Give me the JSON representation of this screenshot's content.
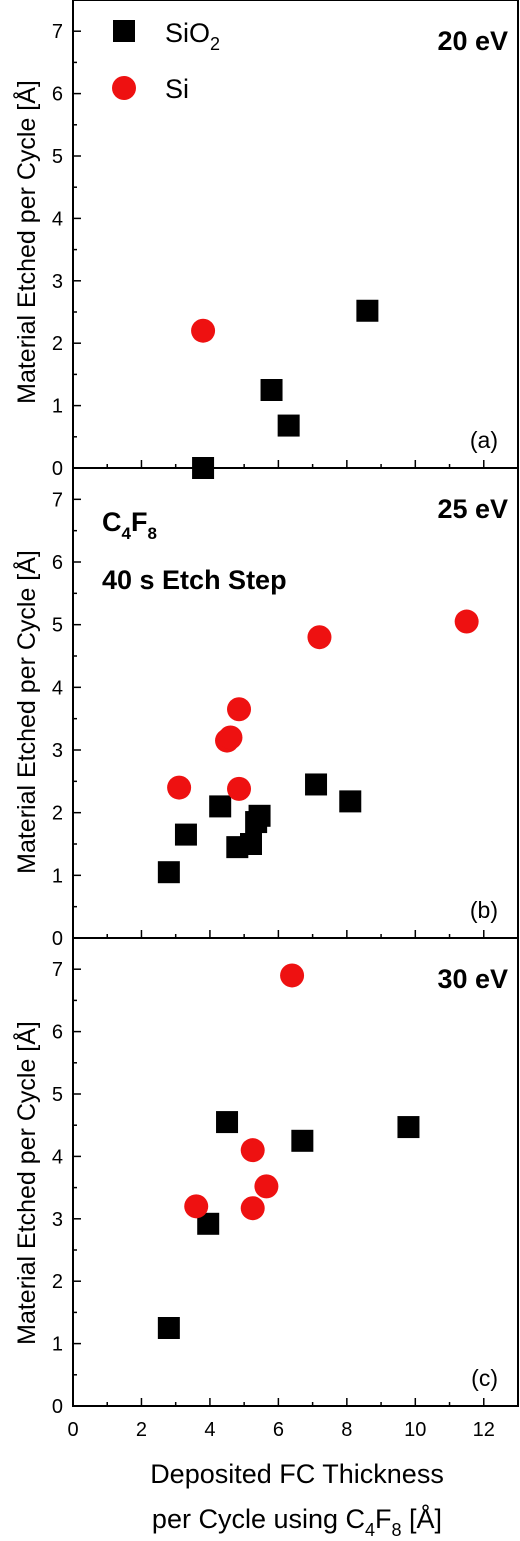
{
  "legend": {
    "items": [
      {
        "name": "SiO",
        "sub": "2",
        "marker": "square",
        "color": "#000000"
      },
      {
        "name": "Si",
        "sub": "",
        "marker": "circle",
        "color": "#ee1111"
      }
    ]
  },
  "note": {
    "gas_main": "C",
    "gas_sub1": "4",
    "gas_mid": "F",
    "gas_sub2": "8",
    "etch_step": "40 s Etch Step"
  },
  "xaxis": {
    "label_line1": "Deposited FC Thickness",
    "label_line2_pre": "per Cycle using C",
    "label_line2_sub1": "4",
    "label_line2_mid": "F",
    "label_line2_sub2": "8",
    "label_line2_post": " [Å]"
  },
  "ylabel": "Material Etched per Cycle [Å]",
  "chart_data": [
    {
      "type": "scatter",
      "panel": "(a)",
      "energy": "20 eV",
      "xlim": [
        0,
        13
      ],
      "ylim": [
        0,
        7.5
      ],
      "xticks": [
        0,
        2,
        4,
        6,
        8,
        10,
        12
      ],
      "yticks": [
        0,
        1,
        2,
        3,
        4,
        5,
        6,
        7
      ],
      "series": [
        {
          "name": "SiO2",
          "marker": "square",
          "color": "#000000",
          "points": [
            [
              3.8,
              0.0
            ],
            [
              5.8,
              1.25
            ],
            [
              6.3,
              0.68
            ],
            [
              8.6,
              2.52
            ]
          ]
        },
        {
          "name": "Si",
          "marker": "circle",
          "color": "#ee1111",
          "points": [
            [
              3.8,
              2.2
            ]
          ]
        }
      ]
    },
    {
      "type": "scatter",
      "panel": "(b)",
      "energy": "25 eV",
      "xlim": [
        0,
        13
      ],
      "ylim": [
        0,
        7.5
      ],
      "xticks": [
        0,
        2,
        4,
        6,
        8,
        10,
        12
      ],
      "yticks": [
        0,
        1,
        2,
        3,
        4,
        5,
        6,
        7
      ],
      "series": [
        {
          "name": "SiO2",
          "marker": "square",
          "color": "#000000",
          "points": [
            [
              2.8,
              1.05
            ],
            [
              3.3,
              1.65
            ],
            [
              4.3,
              2.1
            ],
            [
              4.8,
              1.45
            ],
            [
              5.2,
              1.5
            ],
            [
              5.35,
              1.85
            ],
            [
              5.45,
              1.95
            ],
            [
              7.1,
              2.45
            ],
            [
              8.1,
              2.18
            ]
          ]
        },
        {
          "name": "Si",
          "marker": "circle",
          "color": "#ee1111",
          "points": [
            [
              3.1,
              2.4
            ],
            [
              4.5,
              3.15
            ],
            [
              4.6,
              3.2
            ],
            [
              4.85,
              2.38
            ],
            [
              4.85,
              3.65
            ],
            [
              7.2,
              4.8
            ],
            [
              11.5,
              5.05
            ]
          ]
        }
      ]
    },
    {
      "type": "scatter",
      "panel": "(c)",
      "energy": "30 eV",
      "xlim": [
        0,
        13
      ],
      "ylim": [
        0,
        7.5
      ],
      "xticks": [
        0,
        2,
        4,
        6,
        8,
        10,
        12
      ],
      "yticks": [
        0,
        1,
        2,
        3,
        4,
        5,
        6,
        7
      ],
      "series": [
        {
          "name": "SiO2",
          "marker": "square",
          "color": "#000000",
          "points": [
            [
              2.8,
              1.25
            ],
            [
              3.95,
              2.92
            ],
            [
              4.5,
              4.55
            ],
            [
              6.7,
              4.25
            ],
            [
              9.8,
              4.47
            ]
          ]
        },
        {
          "name": "Si",
          "marker": "circle",
          "color": "#ee1111",
          "points": [
            [
              3.6,
              3.2
            ],
            [
              5.25,
              3.17
            ],
            [
              5.25,
              4.1
            ],
            [
              5.65,
              3.52
            ],
            [
              6.4,
              6.9
            ]
          ]
        }
      ]
    }
  ]
}
